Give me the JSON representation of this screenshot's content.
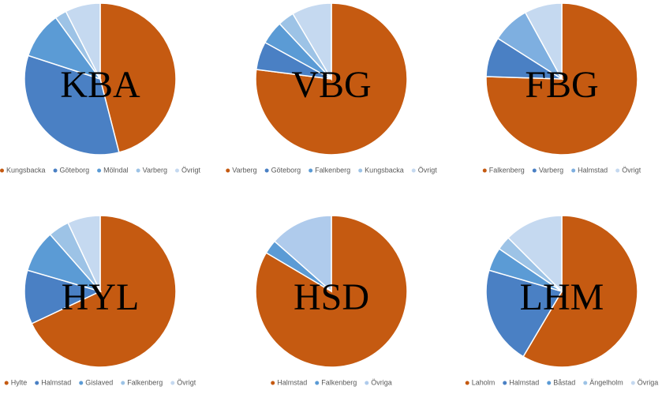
{
  "chart_data": [
    {
      "type": "pie",
      "title": "KBA",
      "categories": [
        "Kungsbacka",
        "Göteborg",
        "Mölndal",
        "Varberg",
        "Övrigt"
      ],
      "values": [
        46,
        34,
        10,
        2.5,
        7.5
      ],
      "colors": [
        "#c55a11",
        "#4a80c4",
        "#5b9bd5",
        "#9dc3e6",
        "#c5d9f0"
      ]
    },
    {
      "type": "pie",
      "title": "VBG",
      "categories": [
        "Varberg",
        "Göteborg",
        "Falkenberg",
        "Kungsbacka",
        "Övrigt"
      ],
      "values": [
        77,
        6,
        5,
        3.5,
        8.5
      ],
      "colors": [
        "#c55a11",
        "#4a80c4",
        "#5b9bd5",
        "#9dc3e6",
        "#c5d9f0"
      ]
    },
    {
      "type": "pie",
      "title": "FBG",
      "categories": [
        "Falkenberg",
        "Varberg",
        "Halmstad",
        "Övrigt"
      ],
      "values": [
        75.5,
        8.5,
        8,
        8
      ],
      "colors": [
        "#c55a11",
        "#4a80c4",
        "#7eafe0",
        "#c5d9f0"
      ]
    },
    {
      "type": "pie",
      "title": "HYL",
      "categories": [
        "Hylte",
        "Halmstad",
        "Gislaved",
        "Falkenberg",
        "Övrigt"
      ],
      "values": [
        68,
        11.5,
        9,
        4.5,
        7
      ],
      "colors": [
        "#c55a11",
        "#4a80c4",
        "#5b9bd5",
        "#9dc3e6",
        "#c5d9f0"
      ]
    },
    {
      "type": "pie",
      "title": "HSD",
      "categories": [
        "Halmstad",
        "Falkenberg",
        "Övriga"
      ],
      "values": [
        83.5,
        3,
        13.5
      ],
      "colors": [
        "#c55a11",
        "#5b9bd5",
        "#afcbec"
      ]
    },
    {
      "type": "pie",
      "title": "LHM",
      "categories": [
        "Laholm",
        "Halmstad",
        "Båstad",
        "Ängelholm",
        "Övriga"
      ],
      "values": [
        58.5,
        21,
        5,
        3,
        12.5
      ],
      "colors": [
        "#c55a11",
        "#4a80c4",
        "#5b9bd5",
        "#9dc3e6",
        "#c5d9f0"
      ]
    }
  ]
}
